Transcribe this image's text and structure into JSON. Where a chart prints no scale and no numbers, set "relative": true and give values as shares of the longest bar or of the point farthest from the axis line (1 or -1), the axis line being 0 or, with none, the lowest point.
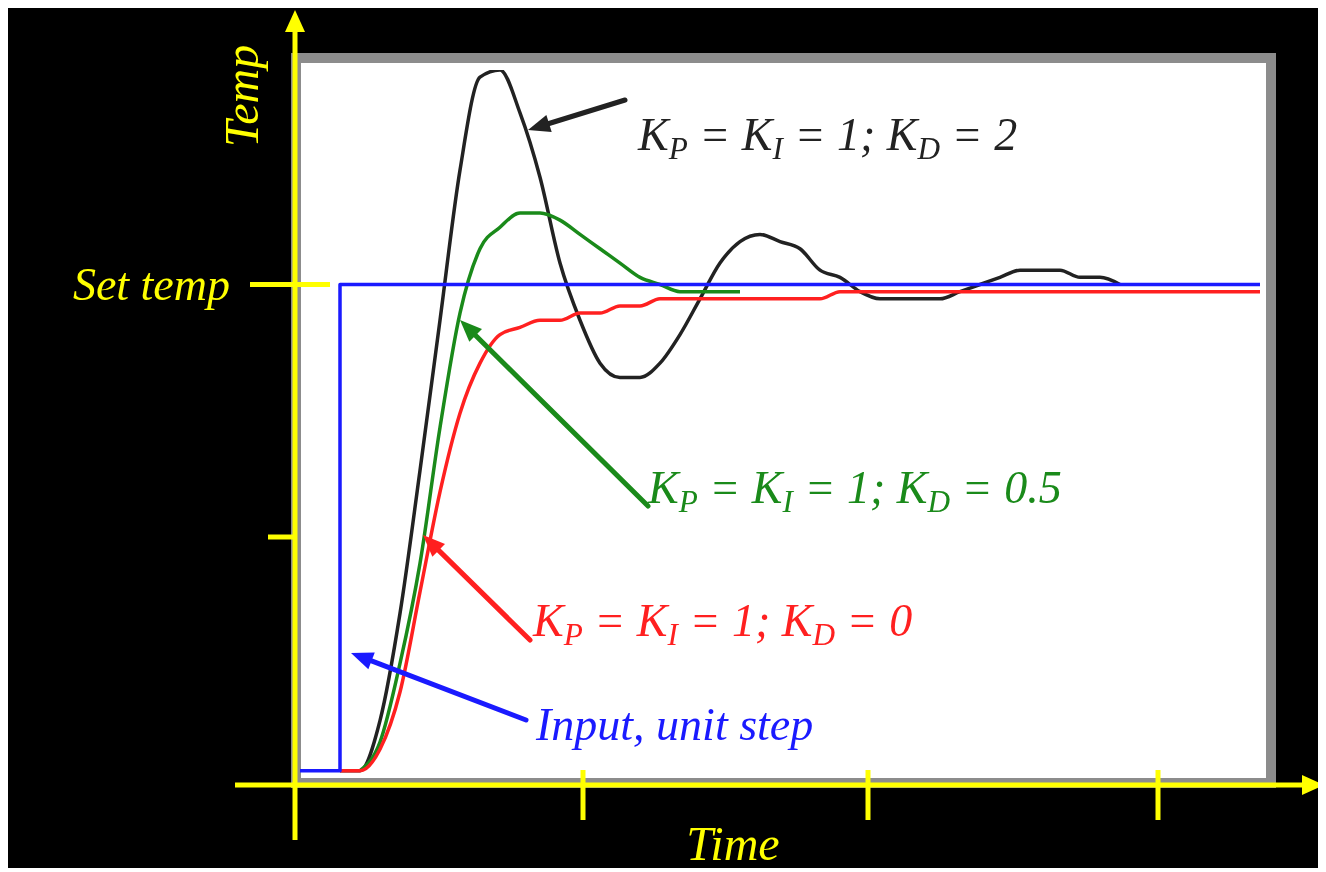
{
  "chart_data": {
    "type": "line",
    "relative": true,
    "xlabel": "Time",
    "ylabel": "Temp",
    "categories": [
      null,
      null,
      null,
      null,
      null,
      null,
      null,
      null,
      null,
      null,
      null,
      null,
      null,
      null,
      null,
      null,
      null,
      null,
      null,
      null,
      null,
      null,
      null,
      null,
      null,
      null,
      null,
      null,
      null,
      null,
      null,
      null,
      null,
      null,
      null,
      null,
      null,
      null,
      null,
      null,
      null,
      null,
      null,
      null,
      null,
      null,
      null,
      null,
      null
    ],
    "series": [
      {
        "name": "K$_{P}$ = K$_{I}$ = 1; K$_{D}$ = 2",
        "color": "#222222",
        "values": [
          null,
          null,
          0.02,
          0.02,
          0.09,
          0.24,
          0.44,
          0.65,
          0.86,
          0.99,
          1.0,
          0.94,
          0.85,
          0.73,
          0.65,
          0.59,
          0.57,
          0.57,
          0.59,
          0.63,
          0.68,
          0.73,
          0.76,
          0.77,
          0.76,
          0.75,
          0.72,
          0.71,
          0.69,
          0.68,
          0.68,
          0.68,
          0.68,
          0.69,
          0.7,
          0.71,
          0.72,
          0.72,
          0.72,
          0.71,
          0.71,
          0.7,
          null,
          null,
          null,
          null,
          null,
          null,
          null
        ]
      },
      {
        "name": "K$_{P}$ = K$_{I}$ = 1; K$_{D}$ = 0.5",
        "color": "#1a8a1a",
        "values": [
          null,
          null,
          null,
          0.02,
          0.06,
          0.17,
          0.31,
          0.5,
          0.66,
          0.75,
          0.78,
          0.8,
          0.8,
          0.79,
          0.77,
          0.75,
          0.73,
          0.71,
          0.7,
          0.69,
          0.69,
          0.69,
          0.69,
          null,
          null,
          null,
          null,
          null,
          null,
          null,
          null,
          null,
          null,
          null,
          null,
          null,
          null,
          null,
          null,
          null,
          null,
          null,
          null,
          null,
          null,
          null,
          null,
          null,
          null
        ]
      },
      {
        "name": "K$_{P}$ = K$_{I}$ = 1; K$_{D}$ = 0",
        "color": "#ff2020",
        "values": [
          null,
          null,
          0.02,
          0.02,
          0.05,
          0.13,
          0.27,
          0.41,
          0.52,
          0.59,
          0.63,
          0.64,
          0.65,
          0.65,
          0.66,
          0.66,
          0.67,
          0.67,
          0.68,
          0.68,
          0.68,
          0.68,
          0.68,
          0.68,
          0.68,
          0.68,
          0.68,
          0.69,
          0.69,
          0.69,
          0.69,
          0.69,
          0.69,
          0.69,
          0.69,
          0.69,
          0.69,
          0.69,
          0.69,
          0.69,
          0.69,
          0.69,
          0.69,
          0.69,
          0.69,
          0.69,
          0.69,
          0.69,
          0.69
        ]
      },
      {
        "name": "Input, unit step",
        "type": "step",
        "color": "#1a1aff",
        "values": [
          0.02,
          0.02,
          0.7,
          0.7,
          0.7,
          0.7,
          0.7,
          0.7,
          0.7,
          0.7,
          0.7,
          0.7,
          0.7,
          0.7,
          0.7,
          0.7,
          0.7,
          0.7,
          0.7,
          0.7,
          0.7,
          0.7,
          0.7,
          0.7,
          0.7,
          0.7,
          0.7,
          0.7,
          0.7,
          0.7,
          0.7,
          0.7,
          0.7,
          0.7,
          0.7,
          0.7,
          0.7,
          0.7,
          0.7,
          0.7,
          0.7,
          0.7,
          0.7,
          0.7,
          0.7,
          0.7,
          0.7,
          0.7,
          0.7
        ]
      }
    ],
    "legend": "top left",
    "annotations": [
      "Set temp"
    ]
  }
}
